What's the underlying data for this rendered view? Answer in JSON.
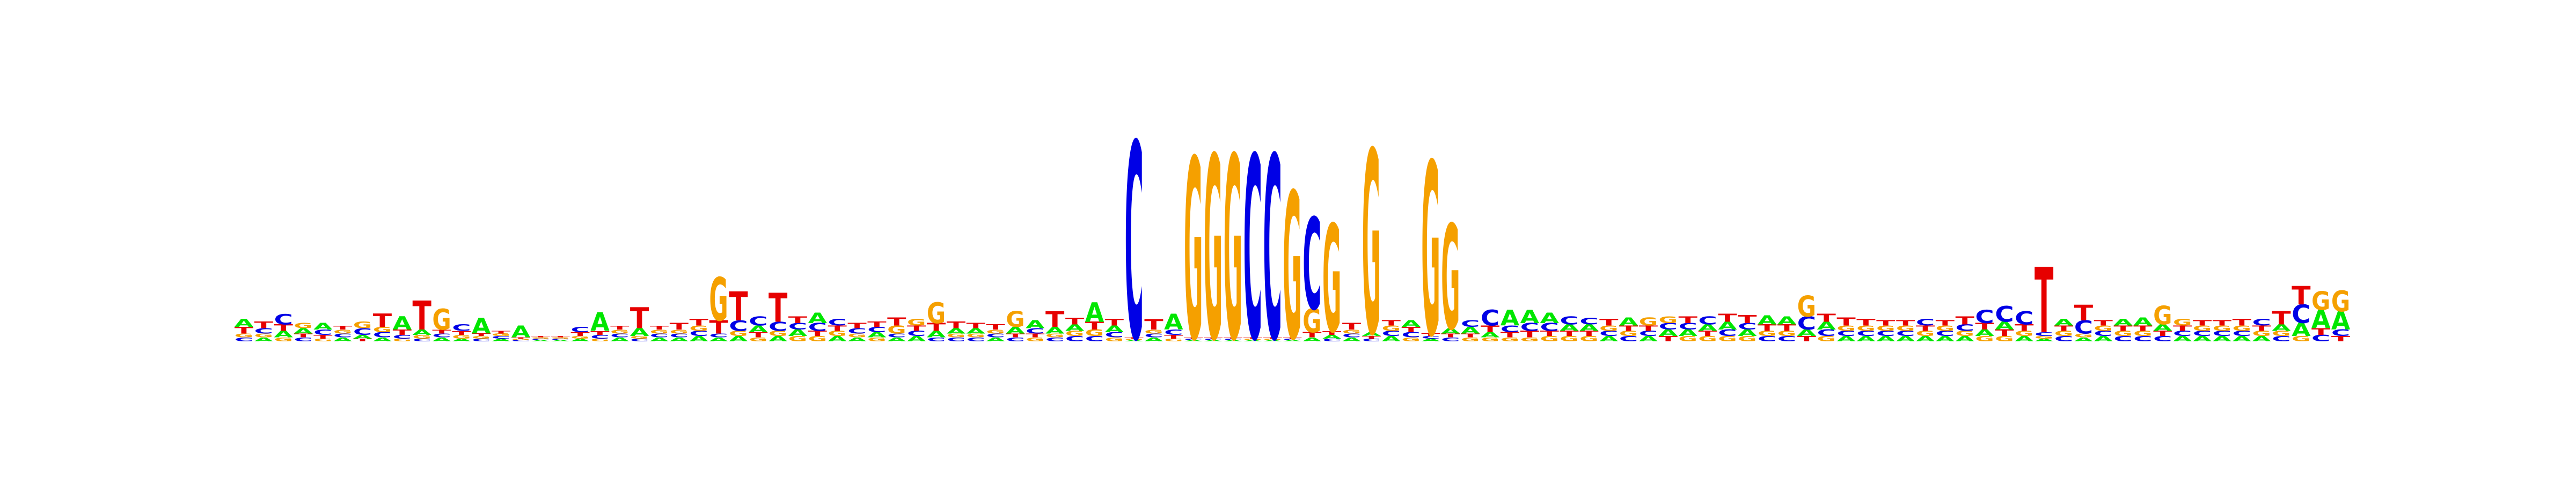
{
  "logo": {
    "alphabet": [
      "A",
      "C",
      "G",
      "T"
    ],
    "colors": {
      "A": "#00e600",
      "C": "#0000e6",
      "G": "#f5a000",
      "T": "#e60000"
    },
    "positions": [
      {
        "A": 0.06,
        "C": 0.03,
        "G": 0.03,
        "T": 0.05
      },
      {
        "A": 0.03,
        "C": 0.04,
        "G": 0.03,
        "T": 0.05
      },
      {
        "A": 0.05,
        "C": 0.08,
        "G": 0.03,
        "T": 0.05
      },
      {
        "A": 0.04,
        "C": 0.03,
        "G": 0.04,
        "T": 0.03
      },
      {
        "A": 0.05,
        "C": 0.04,
        "G": 0.02,
        "T": 0.03
      },
      {
        "A": 0.03,
        "C": 0.03,
        "G": 0.03,
        "T": 0.03
      },
      {
        "A": 0.03,
        "C": 0.05,
        "G": 0.05,
        "T": 0.02
      },
      {
        "A": 0.03,
        "C": 0.04,
        "G": 0.04,
        "T": 0.1
      },
      {
        "A": 0.1,
        "C": 0.03,
        "G": 0.02,
        "T": 0.04
      },
      {
        "A": 0.04,
        "C": 0.02,
        "G": 0.03,
        "T": 0.22
      },
      {
        "A": 0.03,
        "C": 0.03,
        "G": 0.16,
        "T": 0.03
      },
      {
        "A": 0.02,
        "C": 0.05,
        "G": 0.03,
        "T": 0.03
      },
      {
        "A": 0.12,
        "C": 0.02,
        "G": 0.02,
        "T": 0.02
      },
      {
        "A": 0.02,
        "C": 0.02,
        "G": 0.02,
        "T": 0.02
      },
      {
        "A": 0.09,
        "C": 0.01,
        "G": 0.01,
        "T": 0.01
      },
      {
        "A": 0.01,
        "C": 0.01,
        "G": 0.01,
        "T": 0.01
      },
      {
        "A": 0.01,
        "C": 0.01,
        "G": 0.01,
        "T": 0.01
      },
      {
        "A": 0.02,
        "C": 0.04,
        "G": 0.02,
        "T": 0.03
      },
      {
        "A": 0.14,
        "C": 0.03,
        "G": 0.02,
        "T": 0.03
      },
      {
        "A": 0.03,
        "C": 0.03,
        "G": 0.03,
        "T": 0.03
      },
      {
        "A": 0.06,
        "C": 0.02,
        "G": 0.02,
        "T": 0.16
      },
      {
        "A": 0.03,
        "C": 0.03,
        "G": 0.03,
        "T": 0.03
      },
      {
        "A": 0.03,
        "C": 0.03,
        "G": 0.03,
        "T": 0.05
      },
      {
        "A": 0.04,
        "C": 0.04,
        "G": 0.04,
        "T": 0.05
      },
      {
        "A": 0.03,
        "C": 0.03,
        "G": 0.33,
        "T": 0.1
      },
      {
        "A": 0.04,
        "C": 0.08,
        "G": 0.04,
        "T": 0.22
      },
      {
        "A": 0.05,
        "C": 0.07,
        "G": 0.03,
        "T": 0.04
      },
      {
        "A": 0.04,
        "C": 0.07,
        "G": 0.04,
        "T": 0.22
      },
      {
        "A": 0.05,
        "C": 0.05,
        "G": 0.04,
        "T": 0.05
      },
      {
        "A": 0.08,
        "C": 0.06,
        "G": 0.04,
        "T": 0.04
      },
      {
        "A": 0.04,
        "C": 0.05,
        "G": 0.04,
        "T": 0.04
      },
      {
        "A": 0.03,
        "C": 0.04,
        "G": 0.03,
        "T": 0.04
      },
      {
        "A": 0.04,
        "C": 0.04,
        "G": 0.03,
        "T": 0.04
      },
      {
        "A": 0.03,
        "C": 0.03,
        "G": 0.06,
        "T": 0.06
      },
      {
        "A": 0.04,
        "C": 0.04,
        "G": 0.05,
        "T": 0.04
      },
      {
        "A": 0.05,
        "C": 0.03,
        "G": 0.16,
        "T": 0.06
      },
      {
        "A": 0.04,
        "C": 0.03,
        "G": 0.03,
        "T": 0.05
      },
      {
        "A": 0.04,
        "C": 0.03,
        "G": 0.03,
        "T": 0.04
      },
      {
        "A": 0.03,
        "C": 0.03,
        "G": 0.03,
        "T": 0.04
      },
      {
        "A": 0.05,
        "C": 0.03,
        "G": 0.12,
        "T": 0.03
      },
      {
        "A": 0.06,
        "C": 0.04,
        "G": 0.03,
        "T": 0.03
      },
      {
        "A": 0.05,
        "C": 0.03,
        "G": 0.03,
        "T": 0.12
      },
      {
        "A": 0.05,
        "C": 0.04,
        "G": 0.04,
        "T": 0.05
      },
      {
        "A": 0.15,
        "C": 0.04,
        "G": 0.05,
        "T": 0.06
      },
      {
        "A": 0.05,
        "C": 0.04,
        "G": 0.03,
        "T": 0.05
      },
      {
        "A": 0.01,
        "C": 1.5,
        "G": 0.01,
        "T": 0.01
      },
      {
        "A": 0.03,
        "C": 0.03,
        "G": 0.03,
        "T": 0.08
      },
      {
        "A": 0.12,
        "C": 0.04,
        "G": 0.02,
        "T": 0.03
      },
      {
        "A": 0.01,
        "C": 0.01,
        "G": 1.38,
        "T": 0.01
      },
      {
        "A": 0.01,
        "C": 0.01,
        "G": 1.4,
        "T": 0.01
      },
      {
        "A": 0.01,
        "C": 0.01,
        "G": 1.4,
        "T": 0.01
      },
      {
        "A": 0.01,
        "C": 1.4,
        "G": 0.01,
        "T": 0.01
      },
      {
        "A": 0.01,
        "C": 1.4,
        "G": 0.01,
        "T": 0.01
      },
      {
        "A": 0.01,
        "C": 0.01,
        "G": 1.12,
        "T": 0.01
      },
      {
        "A": 0.03,
        "C": 0.7,
        "G": 0.18,
        "T": 0.04
      },
      {
        "A": 0.03,
        "C": 0.02,
        "G": 0.82,
        "T": 0.03
      },
      {
        "A": 0.03,
        "C": 0.03,
        "G": 0.03,
        "T": 0.05
      },
      {
        "A": 0.03,
        "C": 0.02,
        "G": 1.4,
        "T": 0.02
      },
      {
        "A": 0.04,
        "C": 0.04,
        "G": 0.04,
        "T": 0.04
      },
      {
        "A": 0.05,
        "C": 0.04,
        "G": 0.03,
        "T": 0.04
      },
      {
        "A": 0.02,
        "C": 0.02,
        "G": 1.32,
        "T": 0.02
      },
      {
        "A": 0.04,
        "C": 0.03,
        "G": 0.8,
        "T": 0.03
      },
      {
        "A": 0.05,
        "C": 0.05,
        "G": 0.03,
        "T": 0.03
      },
      {
        "A": 0.04,
        "C": 0.12,
        "G": 0.03,
        "T": 0.05
      },
      {
        "A": 0.12,
        "C": 0.05,
        "G": 0.03,
        "T": 0.04
      },
      {
        "A": 0.1,
        "C": 0.06,
        "G": 0.03,
        "T": 0.05
      },
      {
        "A": 0.08,
        "C": 0.06,
        "G": 0.04,
        "T": 0.04
      },
      {
        "A": 0.05,
        "C": 0.06,
        "G": 0.04,
        "T": 0.04
      },
      {
        "A": 0.05,
        "C": 0.05,
        "G": 0.04,
        "T": 0.04
      },
      {
        "A": 0.04,
        "C": 0.04,
        "G": 0.04,
        "T": 0.05
      },
      {
        "A": 0.06,
        "C": 0.04,
        "G": 0.04,
        "T": 0.04
      },
      {
        "A": 0.04,
        "C": 0.04,
        "G": 0.06,
        "T": 0.04
      },
      {
        "A": 0.05,
        "C": 0.05,
        "G": 0.05,
        "T": 0.04
      },
      {
        "A": 0.05,
        "C": 0.05,
        "G": 0.04,
        "T": 0.05
      },
      {
        "A": 0.05,
        "C": 0.06,
        "G": 0.04,
        "T": 0.04
      },
      {
        "A": 0.06,
        "C": 0.05,
        "G": 0.04,
        "T": 0.06
      },
      {
        "A": 0.05,
        "C": 0.05,
        "G": 0.04,
        "T": 0.06
      },
      {
        "A": 0.07,
        "C": 0.04,
        "G": 0.04,
        "T": 0.05
      },
      {
        "A": 0.06,
        "C": 0.04,
        "G": 0.04,
        "T": 0.05
      },
      {
        "A": 0.05,
        "C": 0.1,
        "G": 0.16,
        "T": 0.04
      },
      {
        "A": 0.06,
        "C": 0.05,
        "G": 0.04,
        "T": 0.06
      },
      {
        "A": 0.04,
        "C": 0.04,
        "G": 0.04,
        "T": 0.06
      },
      {
        "A": 0.04,
        "C": 0.04,
        "G": 0.04,
        "T": 0.05
      },
      {
        "A": 0.04,
        "C": 0.04,
        "G": 0.04,
        "T": 0.04
      },
      {
        "A": 0.04,
        "C": 0.04,
        "G": 0.04,
        "T": 0.04
      },
      {
        "A": 0.04,
        "C": 0.05,
        "G": 0.04,
        "T": 0.04
      },
      {
        "A": 0.04,
        "C": 0.04,
        "G": 0.04,
        "T": 0.04
      },
      {
        "A": 0.04,
        "C": 0.05,
        "G": 0.04,
        "T": 0.06
      },
      {
        "A": 0.05,
        "C": 0.1,
        "G": 0.04,
        "T": 0.05
      },
      {
        "A": 0.06,
        "C": 0.12,
        "G": 0.04,
        "T": 0.05
      },
      {
        "A": 0.04,
        "C": 0.1,
        "G": 0.04,
        "T": 0.05
      },
      {
        "A": 0.02,
        "C": 0.03,
        "G": 0.02,
        "T": 0.5
      },
      {
        "A": 0.05,
        "C": 0.04,
        "G": 0.04,
        "T": 0.04
      },
      {
        "A": 0.03,
        "C": 0.1,
        "G": 0.03,
        "T": 0.12
      },
      {
        "A": 0.04,
        "C": 0.04,
        "G": 0.04,
        "T": 0.04
      },
      {
        "A": 0.05,
        "C": 0.04,
        "G": 0.04,
        "T": 0.04
      },
      {
        "A": 0.06,
        "C": 0.04,
        "G": 0.04,
        "T": 0.04
      },
      {
        "A": 0.05,
        "C": 0.04,
        "G": 0.14,
        "T": 0.04
      },
      {
        "A": 0.04,
        "C": 0.04,
        "G": 0.05,
        "T": 0.04
      },
      {
        "A": 0.04,
        "C": 0.04,
        "G": 0.04,
        "T": 0.04
      },
      {
        "A": 0.04,
        "C": 0.04,
        "G": 0.04,
        "T": 0.04
      },
      {
        "A": 0.04,
        "C": 0.04,
        "G": 0.04,
        "T": 0.05
      },
      {
        "A": 0.04,
        "C": 0.05,
        "G": 0.04,
        "T": 0.04
      },
      {
        "A": 0.05,
        "C": 0.04,
        "G": 0.04,
        "T": 0.1
      },
      {
        "A": 0.1,
        "C": 0.14,
        "G": 0.04,
        "T": 0.14
      },
      {
        "A": 0.14,
        "C": 0.05,
        "G": 0.14,
        "T": 0.05
      },
      {
        "A": 0.14,
        "C": 0.05,
        "G": 0.16,
        "T": 0.04
      }
    ]
  }
}
